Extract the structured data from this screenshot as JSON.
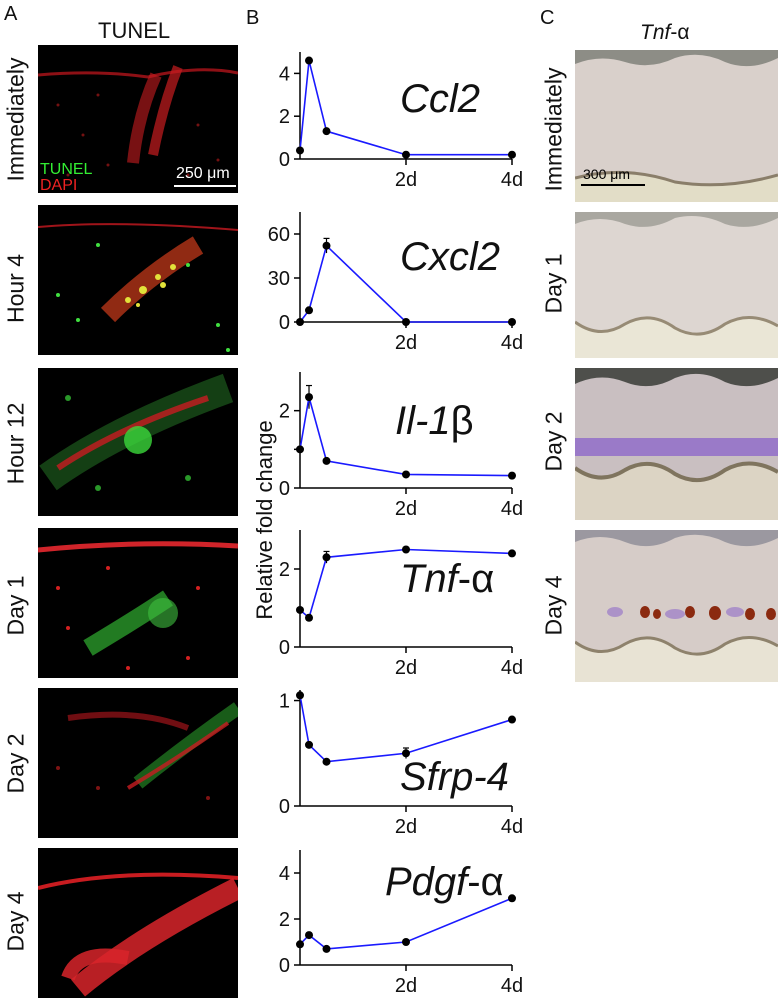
{
  "panels": {
    "a": {
      "letter": "A",
      "header": "TUNEL",
      "legend": {
        "tunel": "TUNEL",
        "dapi": "DAPI"
      },
      "scale_bar": "250 μm",
      "rows": [
        "Immediately",
        "Hour 4",
        "Hour 12",
        "Day 1",
        "Day 2",
        "Day 4"
      ]
    },
    "b": {
      "letter": "B"
    },
    "c": {
      "letter": "C",
      "header_gene": "Tnf",
      "header_suffix": "-α",
      "scale_bar": "300 μm",
      "rows": [
        "Immediately",
        "Day 1",
        "Day 2",
        "Day 4"
      ]
    }
  },
  "colors": {
    "line": "#1a1aff",
    "marker": "#000000",
    "tunel": "#33ee33",
    "dapi": "#ee2222",
    "purple_stain": "#8a63c9",
    "brown_stain": "#8b2a10"
  },
  "chart_data": [
    {
      "type": "line",
      "gene": "Ccl2",
      "x": [
        0,
        0.17,
        0.5,
        2,
        4
      ],
      "values": [
        0.4,
        4.6,
        1.3,
        0.2,
        0.2
      ],
      "ylim": [
        0,
        5
      ],
      "yticks": [
        0,
        2,
        4
      ],
      "xticks": [
        "2d",
        "4d"
      ],
      "xtick_values": [
        2,
        4
      ],
      "error_bars": []
    },
    {
      "type": "line",
      "gene": "Cxcl2",
      "x": [
        0,
        0.17,
        0.5,
        2,
        4
      ],
      "values": [
        0,
        8,
        52,
        0,
        0
      ],
      "ylim": [
        0,
        75
      ],
      "yticks": [
        0,
        30,
        60
      ],
      "xticks": [
        "2d",
        "4d"
      ],
      "xtick_values": [
        2,
        4
      ],
      "error_bars": [
        {
          "index": 2,
          "err": 5
        }
      ]
    },
    {
      "type": "line",
      "gene": "Il-1",
      "gene_suffix": "β",
      "ylabel": "Relative fold change",
      "x": [
        0,
        0.17,
        0.5,
        2,
        4
      ],
      "values": [
        1.0,
        2.35,
        0.7,
        0.35,
        0.32
      ],
      "ylim": [
        0,
        3
      ],
      "yticks": [
        0,
        1,
        2
      ],
      "ytick_labels": [
        "0",
        "",
        "2"
      ],
      "xticks": [
        "2d",
        "4d"
      ],
      "xtick_values": [
        2,
        4
      ],
      "error_bars": [
        {
          "index": 1,
          "err": 0.3
        }
      ]
    },
    {
      "type": "line",
      "gene": "Tnf",
      "gene_suffix": "-α",
      "x": [
        0,
        0.17,
        0.5,
        2,
        4
      ],
      "values": [
        0.95,
        0.75,
        2.3,
        2.5,
        2.4
      ],
      "ylim": [
        0,
        3
      ],
      "yticks": [
        0,
        2
      ],
      "xticks": [
        "2d",
        "4d"
      ],
      "xtick_values": [
        2,
        4
      ],
      "error_bars": [
        {
          "index": 2,
          "err": 0.15
        }
      ]
    },
    {
      "type": "line",
      "gene": "Sfrp-4",
      "x": [
        0,
        0.17,
        0.5,
        2,
        4
      ],
      "values": [
        1.05,
        0.58,
        0.42,
        0.5,
        0.82
      ],
      "ylim": [
        0,
        1.1
      ],
      "yticks": [
        0,
        1
      ],
      "xticks": [
        "2d",
        "4d"
      ],
      "xtick_values": [
        2,
        4
      ],
      "error_bars": [
        {
          "index": 3,
          "err": 0.05
        }
      ]
    },
    {
      "type": "line",
      "gene": "Pdgf",
      "gene_suffix": "-α",
      "x": [
        0,
        0.17,
        0.5,
        2,
        4
      ],
      "values": [
        0.9,
        1.3,
        0.7,
        1.0,
        2.9
      ],
      "ylim": [
        0,
        5
      ],
      "yticks": [
        0,
        2,
        4
      ],
      "xticks": [
        "2d",
        "4d"
      ],
      "xtick_values": [
        2,
        4
      ],
      "error_bars": []
    }
  ]
}
